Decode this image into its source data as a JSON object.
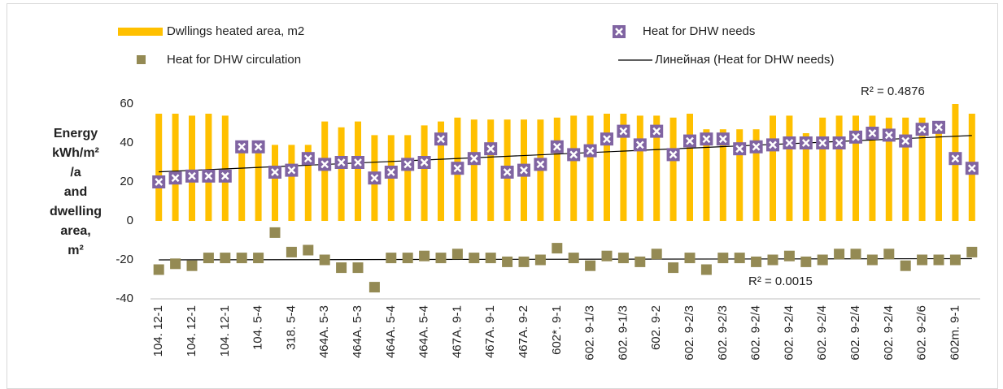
{
  "chart_data": {
    "type": "bar",
    "y_label_lines": [
      "Energy",
      "kWh/m²",
      "/a",
      "and",
      "dwelling",
      "area,",
      "m²"
    ],
    "categories": [
      "104. 12-1",
      null,
      "104. 12-1",
      null,
      "104. 12-1",
      null,
      "104. 5-4",
      null,
      "318. 5-4",
      null,
      "464A. 5-3",
      null,
      "464A. 5-3",
      null,
      "464A. 5-4",
      null,
      "464A. 5-4",
      null,
      "467A. 9-1",
      null,
      "467A. 9-1",
      null,
      "467A. 9-2",
      null,
      "602*. 9-1",
      null,
      "602. 9-1/3",
      null,
      "602. 9-1/3",
      null,
      "602. 9-2",
      null,
      "602. 9-2/3",
      null,
      "602. 9-2/3",
      null,
      "602. 9-2/4",
      null,
      "602. 9-2/4",
      null,
      "602. 9-2/4",
      null,
      "602. 9-2/4",
      null,
      "602. 9-2/4",
      null,
      "602. 9-2/6",
      null,
      "602m. 9-1",
      null
    ],
    "series": [
      {
        "name": "Dwllings heated area, m2",
        "type": "bar",
        "color": "#FFC000",
        "values": [
          55,
          55,
          54,
          55,
          54,
          38,
          38,
          39,
          39,
          39,
          51,
          48,
          51,
          44,
          44,
          44,
          49,
          51,
          53,
          52,
          52,
          52,
          52,
          52,
          53,
          54,
          54,
          55,
          55,
          54,
          54,
          53,
          55,
          47,
          47,
          47,
          47,
          54,
          54,
          45,
          53,
          54,
          54,
          54,
          53,
          53,
          53,
          49,
          60,
          55
        ]
      },
      {
        "name": "Heat for DHW needs",
        "type": "scatter",
        "color": "#8064A2",
        "values": [
          20,
          22,
          23,
          23,
          23,
          38,
          38,
          25,
          26,
          32,
          29,
          30,
          30,
          22,
          25,
          29,
          30,
          42,
          27,
          32,
          37,
          25,
          26,
          29,
          38,
          34,
          36,
          42,
          46,
          39,
          46,
          34,
          41,
          42,
          42,
          37,
          38,
          39,
          40,
          40,
          40,
          40,
          43,
          45,
          44,
          41,
          47,
          48,
          32,
          27
        ]
      },
      {
        "name": "Heat for DHW circulation",
        "type": "scatter",
        "color": "#948A54",
        "values": [
          -25,
          -22,
          -23,
          -19,
          -19,
          -19,
          -19,
          -6,
          -16,
          -15,
          -20,
          -24,
          -24,
          -34,
          -19,
          -19,
          -18,
          -19,
          -17,
          -19,
          -19,
          -21,
          -21,
          -20,
          -14,
          -19,
          -23,
          -18,
          -19,
          -21,
          -17,
          -24,
          -19,
          -25,
          -19,
          -19,
          -21,
          -20,
          -18,
          -21,
          -20,
          -17,
          -17,
          -20,
          -17,
          -23,
          -20,
          -20,
          -20,
          -16
        ]
      }
    ],
    "trendline_legend": "Линейная (Heat for DHW needs)",
    "annotations": [
      "R² = 0.4876",
      "R² = 0.0015"
    ],
    "ylim": [
      -40,
      60
    ],
    "yticks": [
      -40,
      -20,
      0,
      20,
      40,
      60
    ],
    "grid": false
  }
}
